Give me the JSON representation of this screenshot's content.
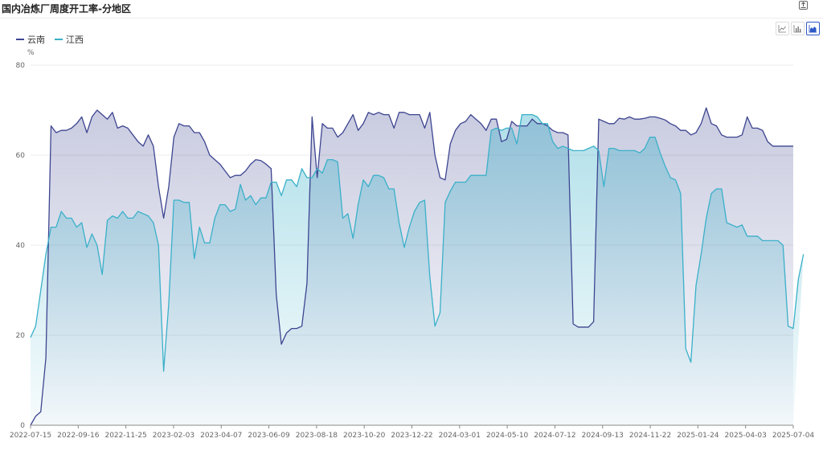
{
  "header": {
    "title": "国内冶炼厂周度开工率-分地区"
  },
  "toolbar": {
    "export_icon": "export-icon",
    "buttons": [
      {
        "name": "line-chart-icon",
        "active": false
      },
      {
        "name": "bar-chart-icon",
        "active": false
      },
      {
        "name": "area-chart-icon",
        "active": true
      }
    ]
  },
  "colors": {
    "yunnan": "#3d4590",
    "jiangxi": "#3ab0c9",
    "grid": "#ebebeb",
    "axis": "#888888"
  },
  "chart_data": {
    "type": "area",
    "title": "国内冶炼厂周度开工率-分地区",
    "ylabel": "%",
    "ylim": [
      0,
      80
    ],
    "yticks": [
      0,
      20,
      40,
      60,
      80
    ],
    "xticks": [
      "2022-07-15",
      "2022-09-16",
      "2022-11-25",
      "2023-02-03",
      "2023-04-07",
      "2023-06-09",
      "2023-08-18",
      "2023-10-20",
      "2023-12-22",
      "2024-03-01",
      "2024-05-10",
      "2024-07-12",
      "2024-09-13",
      "2024-11-22",
      "2025-01-24",
      "2025-04-03",
      "2025-07-04"
    ],
    "legend_position": "top-left",
    "grid": true,
    "series": [
      {
        "name": "云南",
        "values": [
          0,
          2,
          3,
          15,
          66.5,
          65,
          65.5,
          65.5,
          66,
          67,
          68.5,
          65,
          68.5,
          70,
          69,
          68,
          69.5,
          66,
          66.5,
          66,
          64.5,
          63,
          62,
          64.5,
          62,
          53,
          46,
          53,
          64,
          67,
          66.5,
          66.5,
          65,
          65,
          63,
          60,
          59,
          58,
          56.5,
          55,
          55.5,
          55.5,
          56.5,
          58,
          59,
          58.8,
          58,
          57,
          29,
          18,
          20.5,
          21.5,
          21.5,
          22,
          31.5,
          68.5,
          55,
          67,
          66,
          66,
          64,
          65,
          67,
          69,
          65.5,
          67,
          69.5,
          69,
          69.5,
          69,
          69,
          66,
          69.5,
          69.5,
          69,
          69,
          69,
          66,
          69.5,
          60,
          55,
          54.5,
          62.5,
          65.5,
          67,
          67.5,
          69,
          68,
          67,
          65.5,
          68,
          68,
          63,
          63.5,
          67.5,
          66.5,
          66.5,
          66.5,
          68,
          67,
          67,
          66.5,
          65.5,
          65,
          65,
          64.5,
          22.5,
          21.8,
          21.8,
          21.8,
          23,
          68,
          67.5,
          67,
          67,
          68.2,
          68,
          68.5,
          68,
          68,
          68.2,
          68.5,
          68.5,
          68.2,
          67.8,
          67,
          66.5,
          65.5,
          65.5,
          64.5,
          65,
          67,
          70.5,
          67,
          66.5,
          64.5,
          64,
          64,
          64,
          64.5,
          68.5,
          66,
          66,
          65.5,
          63,
          62,
          62,
          62,
          62,
          62
        ],
        "color": "#3d4590"
      },
      {
        "name": "江西",
        "values": [
          19.5,
          22,
          30,
          38,
          44,
          44,
          47.5,
          46,
          46,
          44,
          45,
          39.5,
          42.5,
          40,
          33.5,
          45.5,
          46.5,
          46,
          47.5,
          46,
          46,
          47.5,
          47,
          46.5,
          45,
          40,
          12,
          27,
          50,
          50,
          49.5,
          49.5,
          37,
          44,
          40.5,
          40.5,
          46,
          49,
          49,
          47.5,
          48,
          53.5,
          50,
          51,
          49,
          50.5,
          50.5,
          54,
          54,
          51,
          54.5,
          54.5,
          53,
          57,
          55,
          55,
          57,
          56,
          59,
          59,
          58.5,
          46,
          47,
          41.5,
          49,
          54.5,
          53,
          55.5,
          55.5,
          55,
          52.5,
          52.5,
          45,
          39.5,
          44,
          47.5,
          49.5,
          50,
          33,
          22,
          25,
          49.5,
          52,
          54,
          54,
          54,
          55.5,
          55.5,
          55.5,
          55.5,
          65.5,
          66,
          65.5,
          66,
          66,
          62.5,
          69,
          69,
          69,
          68.5,
          67,
          67,
          63,
          61.5,
          62,
          61.5,
          61,
          61,
          61,
          61.5,
          62,
          61,
          53,
          61.5,
          61.5,
          61,
          61,
          61,
          61,
          60.5,
          61.5,
          64,
          64,
          60.5,
          57.5,
          55,
          54.5,
          51.5,
          17,
          14,
          31,
          38,
          46,
          51.5,
          52.5,
          52.5,
          45,
          44.5,
          44,
          44.5,
          42,
          42,
          42,
          41,
          41,
          41,
          41,
          40,
          22,
          21.5,
          32.5,
          38
        ],
        "color": "#3ab0c9"
      }
    ]
  }
}
